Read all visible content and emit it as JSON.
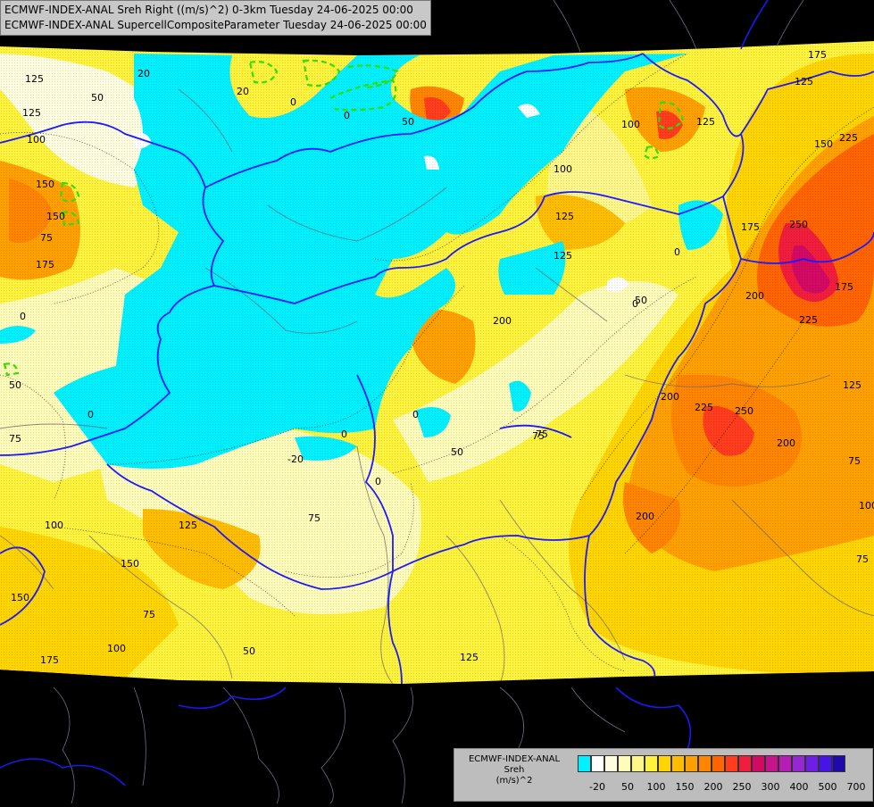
{
  "header": {
    "line1": "ECMWF-INDEX-ANAL Sreh Right ((m/s)^2) 0-3km Tuesday 24-06-2025 00:00",
    "line2": "ECMWF-INDEX-ANAL SupercellCompositeParameter Tuesday 24-06-2025 00:00"
  },
  "legend": {
    "title1": "ECMWF-INDEX-ANAL",
    "title2": "Sreh",
    "title3": "(m/s)^2",
    "colors": [
      "#00f0ff",
      "#ffffff",
      "#fffde0",
      "#fffbb8",
      "#fff68a",
      "#fff23c",
      "#ffd400",
      "#ffbc00",
      "#ffa000",
      "#ff8400",
      "#ff6400",
      "#ff3c1e",
      "#f01e3c",
      "#d20a64",
      "#c8148c",
      "#b41eb4",
      "#9628d2",
      "#6e1ee6",
      "#4614e6",
      "#1e0aaa"
    ],
    "ticks": [
      "-20",
      "50",
      "100",
      "150",
      "200",
      "250",
      "300",
      "400",
      "500",
      "700"
    ]
  },
  "contour_labels": [
    {
      "t": "125"
    },
    {
      "t": "50"
    },
    {
      "t": "20"
    },
    {
      "t": "20"
    },
    {
      "t": "0"
    },
    {
      "t": "50"
    },
    {
      "t": "0"
    },
    {
      "t": "100"
    },
    {
      "t": "125"
    },
    {
      "t": "150"
    },
    {
      "t": "175"
    },
    {
      "t": "125"
    },
    {
      "t": "100"
    },
    {
      "t": "150"
    },
    {
      "t": "225"
    },
    {
      "t": "250"
    },
    {
      "t": "175"
    },
    {
      "t": "225"
    },
    {
      "t": "200"
    },
    {
      "t": "175"
    },
    {
      "t": "125"
    },
    {
      "t": "125"
    },
    {
      "t": "200"
    },
    {
      "t": "0"
    },
    {
      "t": "75"
    },
    {
      "t": "125"
    },
    {
      "t": "225"
    },
    {
      "t": "250"
    },
    {
      "t": "200"
    },
    {
      "t": "125"
    },
    {
      "t": "75"
    },
    {
      "t": "100"
    },
    {
      "t": "75"
    },
    {
      "t": "50"
    },
    {
      "t": "75"
    },
    {
      "t": "0"
    },
    {
      "t": "0"
    },
    {
      "t": "-20"
    },
    {
      "t": "0"
    },
    {
      "t": "0"
    },
    {
      "t": "75"
    },
    {
      "t": "50"
    },
    {
      "t": "0"
    },
    {
      "t": "0"
    },
    {
      "t": "50"
    },
    {
      "t": "75"
    },
    {
      "t": "125"
    },
    {
      "t": "150"
    },
    {
      "t": "100"
    },
    {
      "t": "150"
    },
    {
      "t": "75"
    },
    {
      "t": "100"
    },
    {
      "t": "50"
    },
    {
      "t": "175"
    },
    {
      "t": "125"
    },
    {
      "t": "200"
    },
    {
      "t": "100"
    },
    {
      "t": "75"
    },
    {
      "t": "200"
    },
    {
      "t": "150"
    },
    {
      "t": "175"
    }
  ]
}
